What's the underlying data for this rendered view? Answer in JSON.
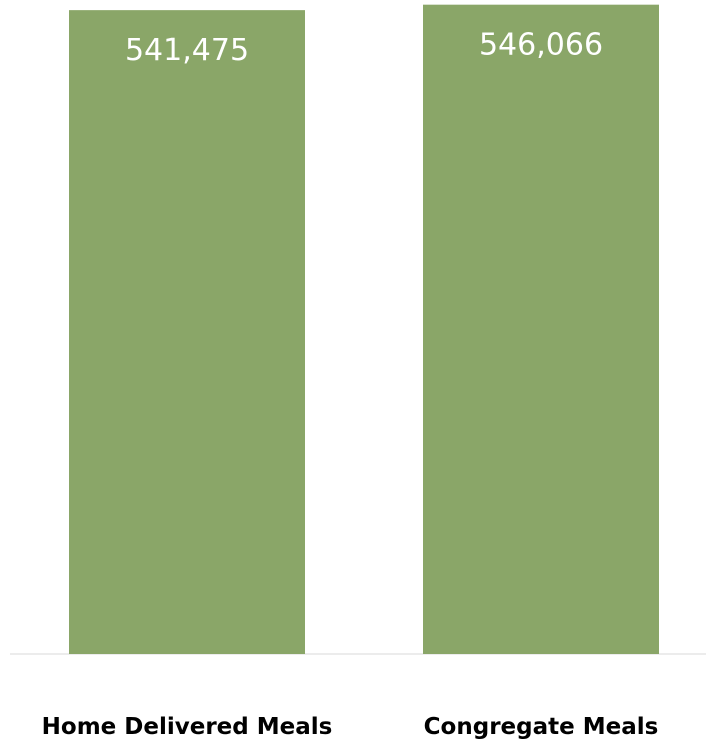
{
  "colors": {
    "bar": "#8aa668",
    "axis": "#d9d9d9",
    "label": "#000000",
    "value_label": "#ffffff"
  },
  "chart_data": {
    "type": "bar",
    "categories": [
      "Home Delivered Meals",
      "Congregate Meals"
    ],
    "values": [
      541475,
      546066
    ],
    "data_labels": [
      "541,475",
      "546,066"
    ],
    "ylim": [
      0,
      550000
    ],
    "grid": false,
    "legend": "none"
  }
}
